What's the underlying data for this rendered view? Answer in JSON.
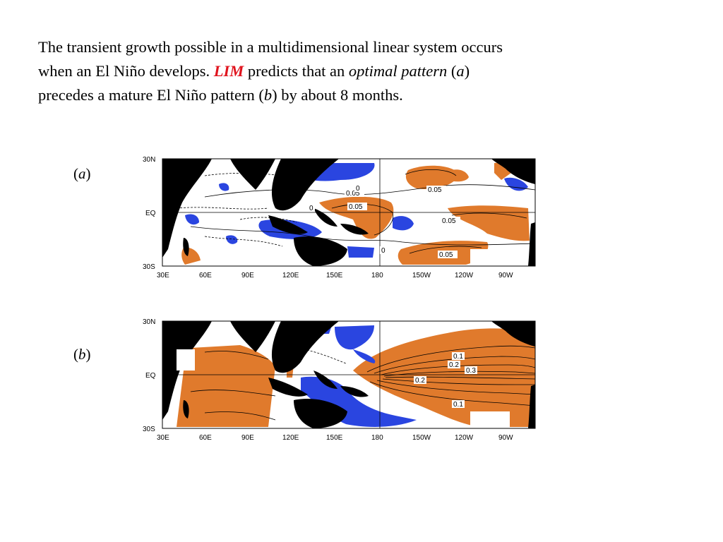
{
  "intro": {
    "line1": "The transient growth possible in a multidimensional linear system occurs",
    "line2_pre": "when an El Niño develops.  ",
    "lim": "LIM",
    "line2_mid": " predicts that an ",
    "optimal_pattern": "optimal pattern",
    "open_paren": " (",
    "a": "a",
    "close_paren": ")",
    "line3_pre": "precedes a mature El Niño pattern (",
    "b": "b",
    "line3_post": ") by about 8 months."
  },
  "panels": [
    {
      "label_open": "(",
      "label_letter": "a",
      "label_close": ")",
      "contour_labels": [
        "0.05",
        "0.05",
        "0",
        "0.05",
        "0.05",
        "0",
        "0",
        "0.05"
      ]
    },
    {
      "label_open": "(",
      "label_letter": "b",
      "label_close": ")",
      "contour_labels": [
        "0.1",
        "0.2",
        "0.3",
        "0.2",
        "0.1"
      ]
    }
  ],
  "axes": {
    "x_ticks": [
      "30E",
      "60E",
      "90E",
      "120E",
      "150E",
      "180",
      "150W",
      "120W",
      "90W"
    ],
    "y_ticks": [
      "30N",
      "EQ",
      "30S"
    ]
  },
  "colors": {
    "positive": "#e07a2c",
    "negative": "#2a45e0",
    "land": "#000000",
    "lim_text": "#e0141e"
  }
}
